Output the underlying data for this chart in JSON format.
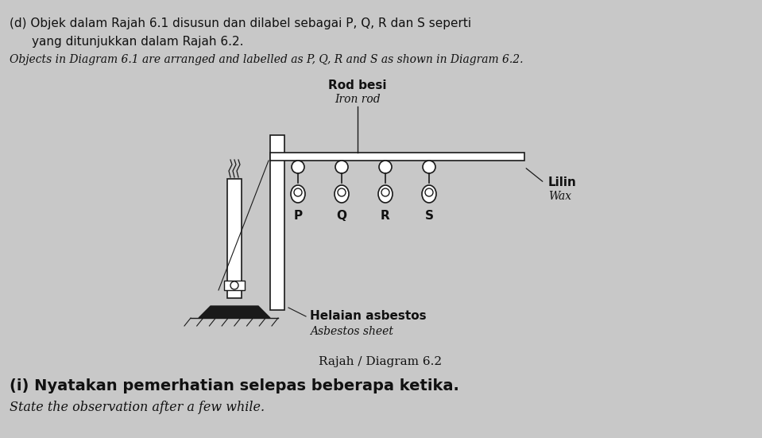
{
  "bg_color": "#c8c8c8",
  "title_text_1a": "(d) Objek dalam Rajah 6.1 disusun dan dilabel sebagai P, Q, R dan S seperti",
  "title_text_1b": "yang ditunjukkan dalam Rajah 6.2.",
  "title_text_2": "Objects in Diagram 6.1 are arranged and labelled as P, Q, R and S as shown in Diagram 6.2.",
  "label_rod_besi": "Rod besi",
  "label_iron_rod": "Iron rod",
  "label_helaian": "Helaian asbestos",
  "label_asbestos": "Asbestos sheet",
  "label_lilin": "Lilin",
  "label_wax": "Wax",
  "labels_pqrs": [
    "P",
    "Q",
    "R",
    "S"
  ],
  "diagram_label": "Rajah / Diagram 6.2",
  "bottom_text_1": "(i) Nyatakan pemerhatian selepas beberapa ketika.",
  "bottom_text_2": "State the observation after a few while.",
  "draw_color": "#1a1a1a",
  "text_color": "#111111"
}
